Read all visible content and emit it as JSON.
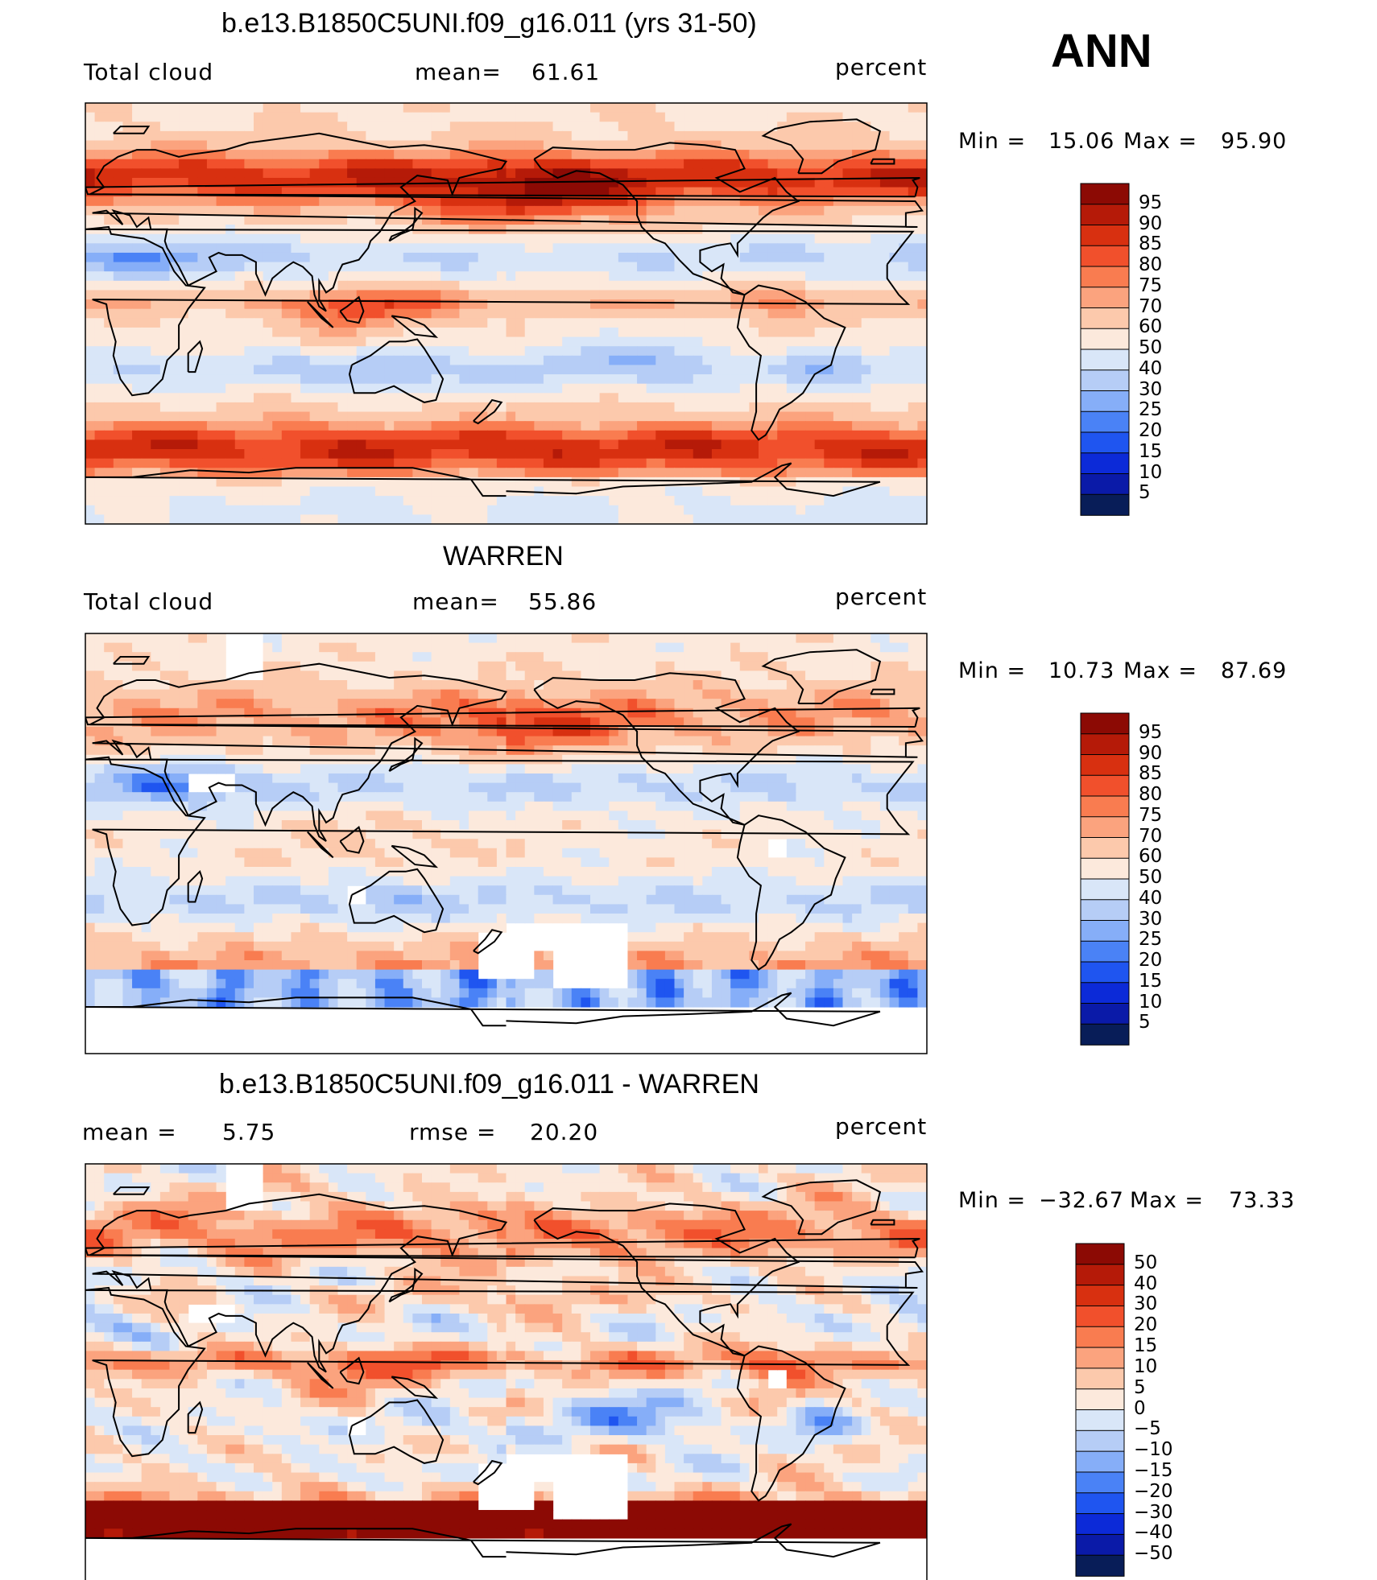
{
  "season": "ANN",
  "colors": {
    "full_scale": [
      "#081d58",
      "#0a1aa8",
      "#0c2ad8",
      "#1f55f0",
      "#4a82f6",
      "#86aef8",
      "#b6cdf6",
      "#d9e6f8",
      "#fce9dc",
      "#fcc9ac",
      "#fba37e",
      "#f97c50",
      "#f1502c",
      "#d83010",
      "#b51a08",
      "#8c0a04"
    ],
    "land_outline": "#000000"
  },
  "chart_data": [
    {
      "type": "heatmap",
      "title": "b.e13.B1850C5UNI.f09_g16.011 (yrs 31-50)",
      "left_label": "Total cloud",
      "stat_label": "mean=",
      "stat_value": "61.61",
      "units": "percent",
      "min_label": "Min =",
      "min_value": "15.06",
      "max_label": "Max =",
      "max_value": "95.90",
      "colorbar_levels": [
        "95",
        "90",
        "85",
        "80",
        "75",
        "70",
        "60",
        "50",
        "40",
        "30",
        "25",
        "20",
        "15",
        "10",
        "5"
      ]
    },
    {
      "type": "heatmap",
      "title": "WARREN",
      "left_label": "Total cloud",
      "stat_label": "mean=",
      "stat_value": "55.86",
      "units": "percent",
      "min_label": "Min =",
      "min_value": "10.73",
      "max_label": "Max =",
      "max_value": "87.69",
      "colorbar_levels": [
        "95",
        "90",
        "85",
        "80",
        "75",
        "70",
        "60",
        "50",
        "40",
        "30",
        "25",
        "20",
        "15",
        "10",
        "5"
      ]
    },
    {
      "type": "heatmap",
      "title": "b.e13.B1850C5UNI.f09_g16.011 - WARREN",
      "left_label": "mean =",
      "left_value": "5.75",
      "stat_label": "rmse =",
      "stat_value": "20.20",
      "units": "percent",
      "min_label": "Min =",
      "min_value": "−32.67",
      "max_label": "Max =",
      "max_value": "73.33",
      "colorbar_levels": [
        "50",
        "40",
        "30",
        "20",
        "15",
        "10",
        "5",
        "0",
        "−5",
        "−10",
        "−15",
        "−20",
        "−30",
        "−40",
        "−50"
      ]
    }
  ]
}
